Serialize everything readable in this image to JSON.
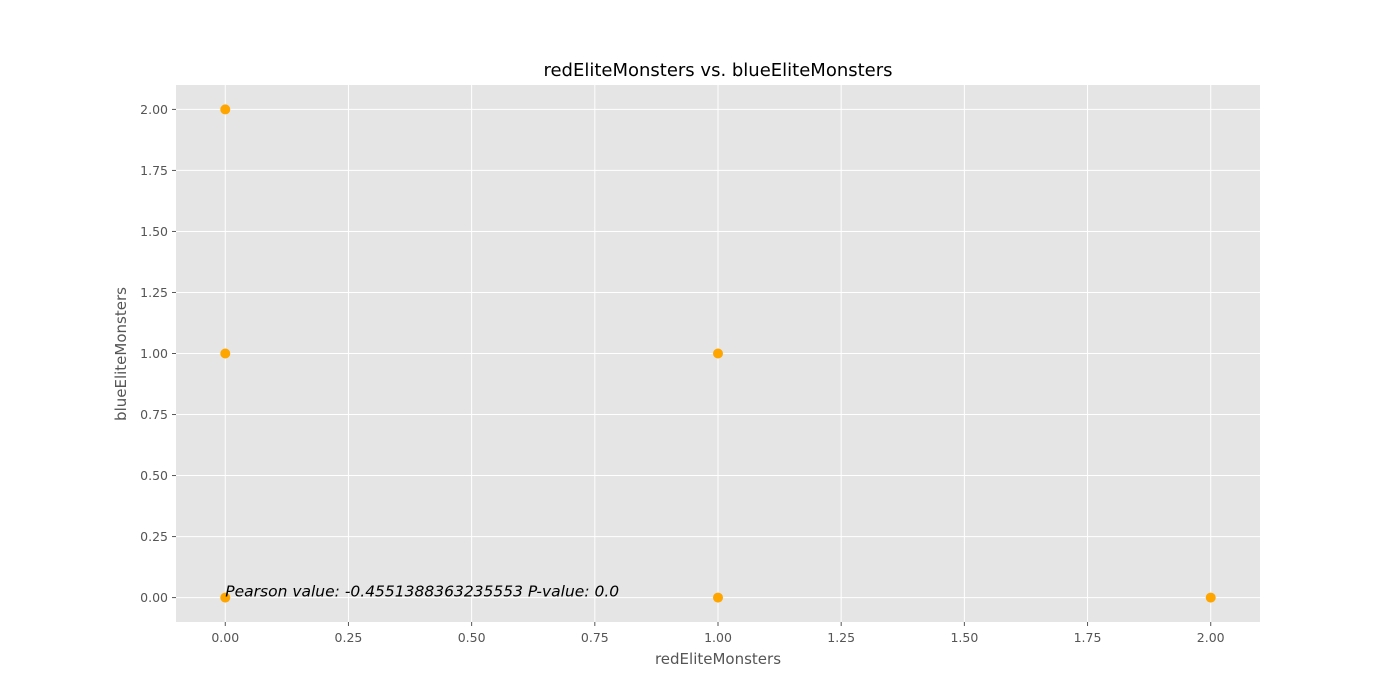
{
  "chart_data": {
    "type": "scatter",
    "title": "redEliteMonsters vs. blueEliteMonsters",
    "xlabel": "redEliteMonsters",
    "ylabel": "blueEliteMonsters",
    "xlim": [
      -0.1,
      2.1
    ],
    "ylim": [
      -0.1,
      2.1
    ],
    "x_ticks": [
      "0.00",
      "0.25",
      "0.50",
      "0.75",
      "1.00",
      "1.25",
      "1.50",
      "1.75",
      "2.00"
    ],
    "y_ticks": [
      "0.00",
      "0.25",
      "0.50",
      "0.75",
      "1.00",
      "1.25",
      "1.50",
      "1.75",
      "2.00"
    ],
    "grid": true,
    "legend": "none",
    "colors": {
      "background": "#e5e5e5",
      "grid": "#ffffff",
      "marker": "#ffa500"
    },
    "series": [
      {
        "points": [
          {
            "x": 0,
            "y": 2
          },
          {
            "x": 0,
            "y": 1
          },
          {
            "x": 0,
            "y": 0
          },
          {
            "x": 1,
            "y": 1
          },
          {
            "x": 1,
            "y": 0
          },
          {
            "x": 2,
            "y": 0
          }
        ]
      }
    ],
    "annotation": {
      "text": "Pearson value: -0.4551388363235553   P-value: 0.0",
      "x": 0,
      "y": 0
    }
  }
}
